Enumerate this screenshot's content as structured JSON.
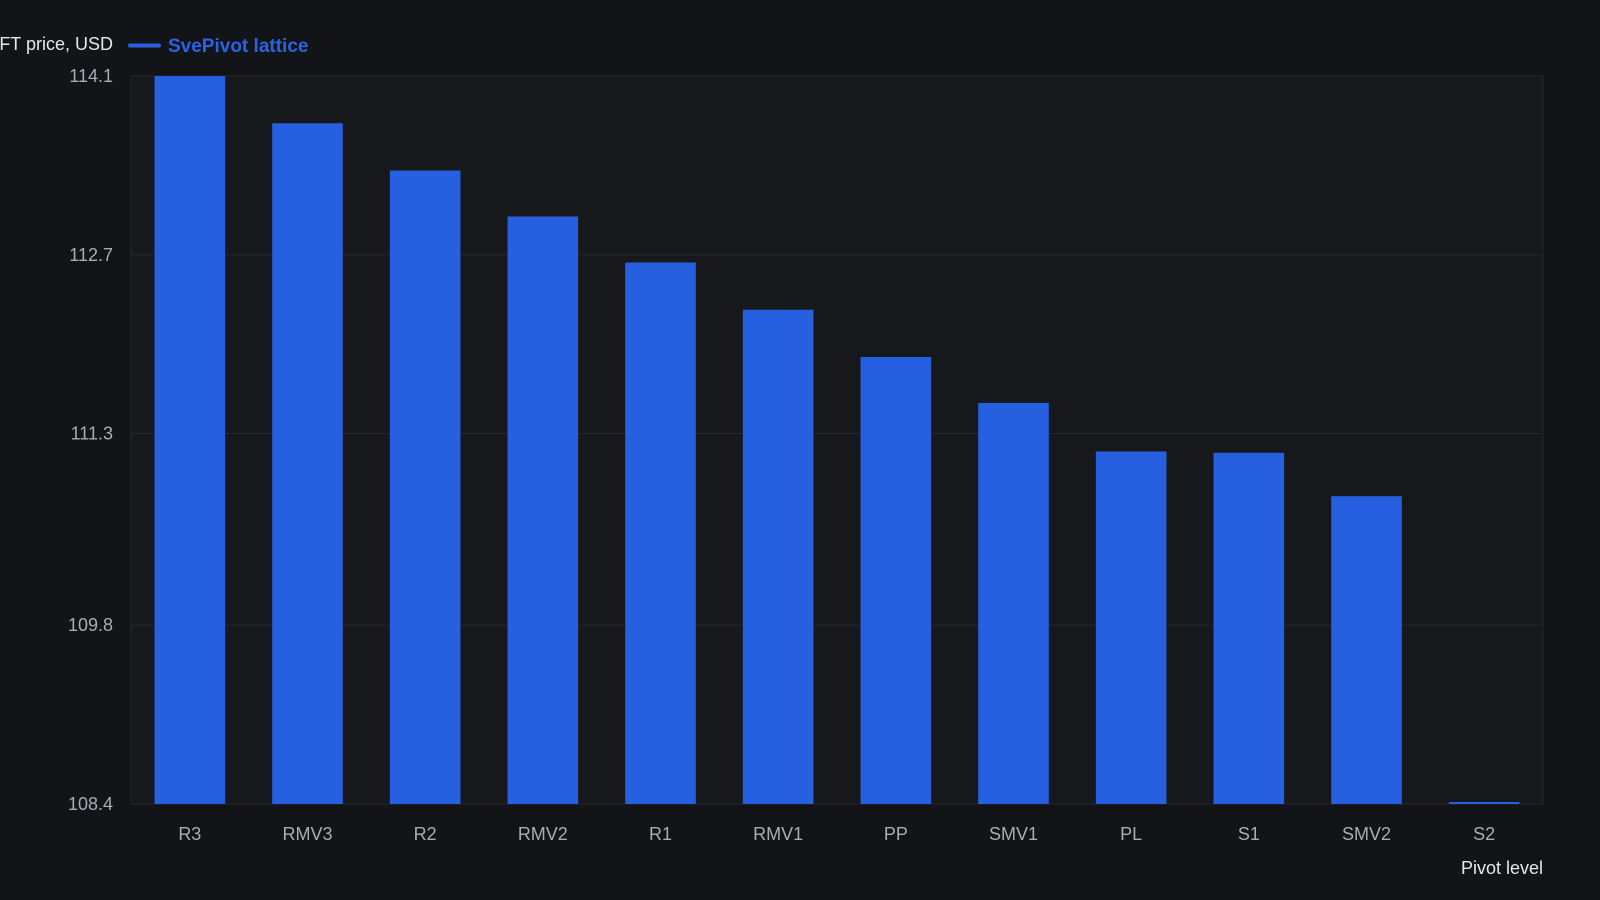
{
  "chart_data": {
    "type": "bar",
    "ylabel": "FT price, USD",
    "xlabel": "Pivot level",
    "legend": {
      "placement": "top-left",
      "entries": [
        "SvePivot lattice"
      ]
    },
    "series": [
      {
        "name": "SvePivot lattice",
        "color": "#2660e0",
        "values": [
          114.1,
          113.73,
          113.36,
          113.0,
          112.64,
          112.27,
          111.9,
          111.54,
          111.16,
          111.15,
          110.81,
          108.39
        ]
      }
    ],
    "categories": [
      "R3",
      "RMV3",
      "R2",
      "RMV2",
      "R1",
      "RMV1",
      "PP",
      "SMV1",
      "PL",
      "S1",
      "SMV2",
      "S2"
    ],
    "yticks": [
      "108.4",
      "109.8",
      "111.3",
      "112.7",
      "114.1"
    ],
    "ylim": [
      108.4,
      114.1
    ],
    "grid": true
  }
}
